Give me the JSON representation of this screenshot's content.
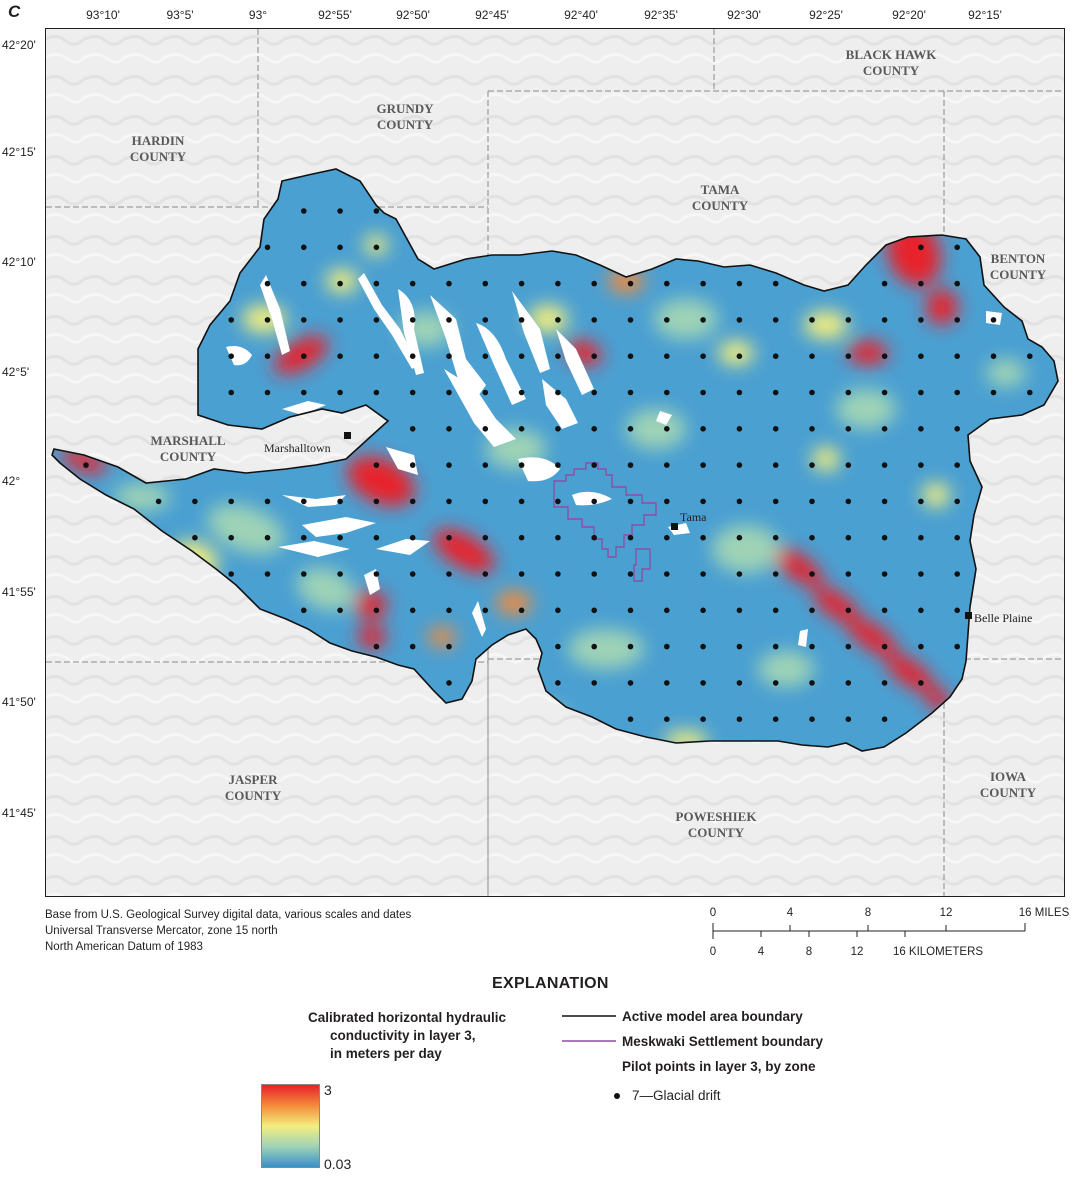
{
  "panel_letter": "C",
  "longitude_ticks": [
    "93°10'",
    "93°5'",
    "93°",
    "92°55'",
    "92°50'",
    "92°45'",
    "92°40'",
    "92°35'",
    "92°30'",
    "92°25'",
    "92°20'",
    "92°15'"
  ],
  "latitude_ticks": [
    "42°20'",
    "42°15'",
    "42°10'",
    "42°5'",
    "42°",
    "41°55'",
    "41°50'",
    "41°45'"
  ],
  "counties": [
    {
      "id": "black-hawk",
      "label": "BLACK HAWK\nCOUNTY"
    },
    {
      "id": "grundy",
      "label": "GRUNDY\nCOUNTY"
    },
    {
      "id": "hardin",
      "label": "HARDIN\nCOUNTY"
    },
    {
      "id": "tama",
      "label": "TAMA\nCOUNTY"
    },
    {
      "id": "benton",
      "label": "BENTON\nCOUNTY"
    },
    {
      "id": "marshall",
      "label": "MARSHALL\nCOUNTY"
    },
    {
      "id": "jasper",
      "label": "JASPER\nCOUNTY"
    },
    {
      "id": "poweshiek",
      "label": "POWESHIEK\nCOUNTY"
    },
    {
      "id": "iowa",
      "label": "IOWA\nCOUNTY"
    }
  ],
  "towns": [
    {
      "id": "marshalltown",
      "label": "Marshalltown"
    },
    {
      "id": "tama",
      "label": "Tama"
    },
    {
      "id": "belle-plaine",
      "label": "Belle Plaine"
    }
  ],
  "credits": [
    "Base from U.S. Geological Survey digital data, various scales and dates",
    "Universal Transverse Mercator, zone 15 north",
    "North American Datum of 1983"
  ],
  "scale_bar": {
    "miles": [
      "0",
      "4",
      "8",
      "12",
      "16 MILES"
    ],
    "kilometers": [
      "0",
      "4",
      "8",
      "12",
      "16 KILOMETERS"
    ]
  },
  "explanation": {
    "title": "EXPLANATION",
    "colorbar_title": [
      "Calibrated horizontal hydraulic",
      "conductivity in layer 3,",
      "in meters per day"
    ],
    "colorbar_max": "3",
    "colorbar_min": "0.03",
    "colors": {
      "high": "#e8202a",
      "mid_high": "#f58a3a",
      "mid": "#f4ee7e",
      "mid_low": "#9fd3b6",
      "low": "#3a8fc9"
    },
    "active_boundary": "Active model area boundary",
    "meskwaki_boundary": "Meskwaki Settlement boundary",
    "meskwaki_color": "#8b4fa3",
    "pilot_points_heading": "Pilot points in layer 3, by zone",
    "pilot_point_zone": "7—Glacial drift"
  }
}
